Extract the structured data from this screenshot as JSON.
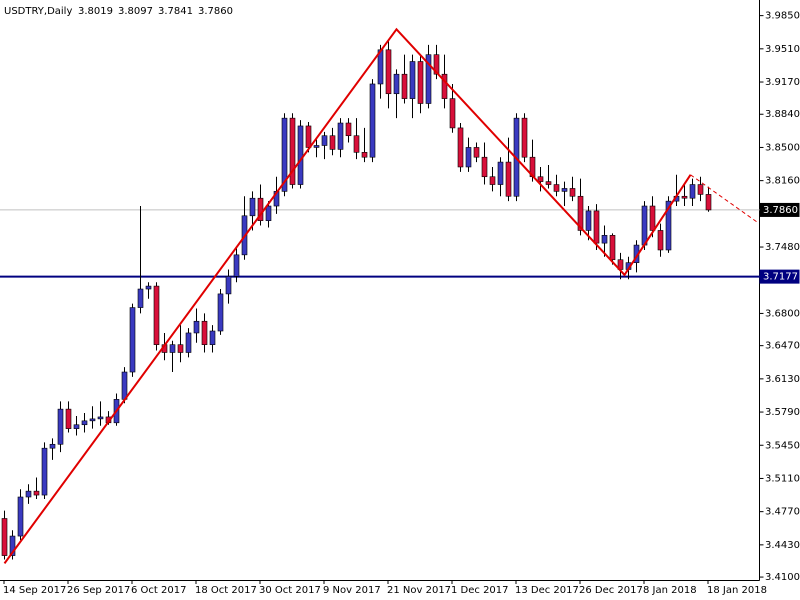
{
  "chart_data": {
    "type": "candlestick",
    "title": "USDTRY,Daily",
    "quote": [
      "3.8019",
      "3.8097",
      "3.7841",
      "3.7860"
    ],
    "categories": [
      "14 Sep 2017",
      null,
      null,
      null,
      null,
      null,
      null,
      null,
      "26 Sep 2017",
      null,
      null,
      null,
      null,
      null,
      null,
      null,
      "6 Oct 2017",
      null,
      null,
      null,
      null,
      null,
      null,
      null,
      "18 Oct 2017",
      null,
      null,
      null,
      null,
      null,
      null,
      null,
      "30 Oct 2017",
      null,
      null,
      null,
      null,
      null,
      null,
      null,
      "9 Nov 2017",
      null,
      null,
      null,
      null,
      null,
      null,
      null,
      "21 Nov 2017",
      null,
      null,
      null,
      null,
      null,
      null,
      null,
      "1 Dec 2017",
      null,
      null,
      null,
      null,
      null,
      null,
      null,
      "13 Dec 2017",
      null,
      null,
      null,
      null,
      null,
      null,
      null,
      "26 Dec 2017",
      null,
      null,
      null,
      null,
      null,
      null,
      null,
      "8 Jan 2018",
      null,
      null,
      null,
      null,
      null,
      null,
      null,
      "18 Jan 2018"
    ],
    "open": [
      3.47,
      3.432,
      3.452,
      3.492,
      3.498,
      3.494,
      3.542,
      3.546,
      3.582,
      3.562,
      3.566,
      3.57,
      3.572,
      3.574,
      3.568,
      3.592,
      3.62,
      3.686,
      3.705,
      3.708,
      3.648,
      3.64,
      3.648,
      3.64,
      3.66,
      3.672,
      3.648,
      3.662,
      3.7,
      3.718,
      3.74,
      3.78,
      3.798,
      3.775,
      3.79,
      3.805,
      3.88,
      3.812,
      3.872,
      3.85,
      3.852,
      3.862,
      3.848,
      3.875,
      3.862,
      3.845,
      3.84,
      3.915,
      3.95,
      3.905,
      3.925,
      3.9,
      3.938,
      3.895,
      3.945,
      3.925,
      3.9,
      3.87,
      3.83,
      3.85,
      3.84,
      3.82,
      3.812,
      3.835,
      3.8,
      3.88,
      3.84,
      3.82,
      3.815,
      3.812,
      3.805,
      3.808,
      3.8,
      3.765,
      3.785,
      3.752,
      3.76,
      3.735,
      3.725,
      3.732,
      3.75,
      3.79,
      3.765,
      3.745,
      3.795,
      3.8,
      3.798,
      3.812,
      3.8019
    ],
    "high": [
      3.478,
      3.458,
      3.5,
      3.505,
      3.512,
      3.548,
      3.552,
      3.59,
      3.59,
      3.575,
      3.578,
      3.585,
      3.59,
      3.58,
      3.598,
      3.625,
      3.69,
      3.79,
      3.712,
      3.712,
      3.66,
      3.652,
      3.668,
      3.665,
      3.685,
      3.68,
      3.668,
      3.705,
      3.725,
      3.748,
      3.8,
      3.805,
      3.812,
      3.795,
      3.82,
      3.885,
      3.885,
      3.878,
      3.876,
      3.858,
      3.866,
      3.87,
      3.88,
      3.88,
      3.88,
      3.87,
      3.92,
      3.955,
      3.96,
      3.93,
      3.945,
      3.945,
      3.945,
      3.955,
      3.955,
      3.945,
      3.915,
      3.875,
      3.86,
      3.855,
      3.855,
      3.83,
      3.84,
      3.86,
      3.885,
      3.885,
      3.858,
      3.83,
      3.832,
      3.822,
      3.815,
      3.82,
      3.818,
      3.79,
      3.792,
      3.77,
      3.762,
      3.742,
      3.738,
      3.755,
      3.795,
      3.8,
      3.772,
      3.8,
      3.822,
      3.812,
      3.818,
      3.82,
      3.8097
    ],
    "low": [
      3.428,
      3.428,
      3.448,
      3.485,
      3.49,
      3.49,
      3.53,
      3.538,
      3.558,
      3.555,
      3.558,
      3.562,
      3.565,
      3.566,
      3.565,
      3.588,
      3.615,
      3.68,
      3.695,
      3.642,
      3.632,
      3.62,
      3.63,
      3.635,
      3.65,
      3.64,
      3.64,
      3.658,
      3.69,
      3.712,
      3.735,
      3.765,
      3.77,
      3.768,
      3.782,
      3.8,
      3.808,
      3.808,
      3.845,
      3.84,
      3.838,
      3.842,
      3.84,
      3.855,
      3.838,
      3.835,
      3.835,
      3.9,
      3.89,
      3.88,
      3.895,
      3.88,
      3.885,
      3.89,
      3.92,
      3.89,
      3.865,
      3.825,
      3.825,
      3.835,
      3.812,
      3.805,
      3.8,
      3.795,
      3.795,
      3.835,
      3.815,
      3.805,
      3.808,
      3.8,
      3.79,
      3.795,
      3.76,
      3.755,
      3.745,
      3.738,
      3.73,
      3.715,
      3.715,
      3.722,
      3.745,
      3.758,
      3.738,
      3.742,
      3.79,
      3.79,
      3.79,
      3.795,
      3.7841
    ],
    "close": [
      3.432,
      3.452,
      3.492,
      3.498,
      3.494,
      3.542,
      3.546,
      3.582,
      3.562,
      3.566,
      3.57,
      3.572,
      3.574,
      3.568,
      3.592,
      3.62,
      3.686,
      3.705,
      3.708,
      3.648,
      3.64,
      3.648,
      3.64,
      3.66,
      3.672,
      3.648,
      3.662,
      3.7,
      3.718,
      3.74,
      3.78,
      3.798,
      3.775,
      3.79,
      3.805,
      3.88,
      3.812,
      3.872,
      3.85,
      3.852,
      3.862,
      3.848,
      3.875,
      3.862,
      3.845,
      3.84,
      3.915,
      3.95,
      3.905,
      3.925,
      3.9,
      3.938,
      3.895,
      3.945,
      3.925,
      3.9,
      3.87,
      3.83,
      3.85,
      3.84,
      3.82,
      3.812,
      3.835,
      3.8,
      3.88,
      3.84,
      3.82,
      3.815,
      3.812,
      3.805,
      3.808,
      3.8,
      3.765,
      3.785,
      3.752,
      3.76,
      3.735,
      3.725,
      3.732,
      3.75,
      3.79,
      3.765,
      3.745,
      3.795,
      3.8,
      3.798,
      3.812,
      3.8019,
      3.786
    ],
    "up_color": "#3a3ac0",
    "down_color": "#d8103a",
    "ylim": [
      3.407,
      4.001
    ],
    "yticks": [
      {
        "value": 3.985,
        "label": "3.9850"
      },
      {
        "value": 3.951,
        "label": "3.9510"
      },
      {
        "value": 3.917,
        "label": "3.9170"
      },
      {
        "value": 3.884,
        "label": "3.8840"
      },
      {
        "value": 3.85,
        "label": "3.8500"
      },
      {
        "value": 3.816,
        "label": "3.8160"
      },
      {
        "value": 3.748,
        "label": "3.7480"
      },
      {
        "value": 3.68,
        "label": "3.6800"
      },
      {
        "value": 3.647,
        "label": "3.6470"
      },
      {
        "value": 3.613,
        "label": "3.6130"
      },
      {
        "value": 3.579,
        "label": "3.5790"
      },
      {
        "value": 3.545,
        "label": "3.5450"
      },
      {
        "value": 3.511,
        "label": "3.5110"
      },
      {
        "value": 3.477,
        "label": "3.4770"
      },
      {
        "value": 3.443,
        "label": "3.4430"
      },
      {
        "value": 3.41,
        "label": "3.4100"
      }
    ],
    "trendlines": [
      {
        "color": "#e00000",
        "x": [
          0,
          49,
          77.5,
          85.75
        ],
        "y": [
          3.424,
          3.971,
          3.7195,
          3.822
        ]
      },
      {
        "color": "#e00000",
        "dashed": true,
        "x": [
          85.75,
          94
        ],
        "y": [
          3.822,
          3.774
        ]
      }
    ],
    "hline": {
      "value": 3.7177,
      "color": "#000080"
    },
    "price_line": {
      "value": 3.786,
      "label": "3.7860",
      "color": "#c0c0c0"
    }
  }
}
